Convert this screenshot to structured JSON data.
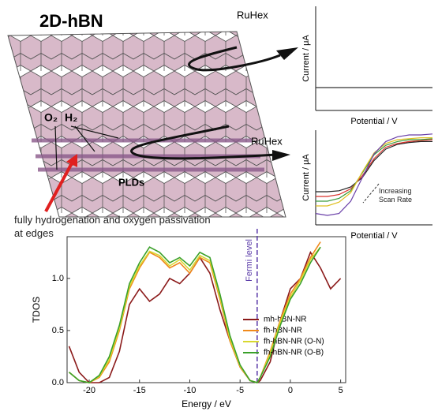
{
  "schematic": {
    "title": "2D-hBN",
    "label_top": "RuHex",
    "label_mid": "RuHex",
    "gas_o": "O₂",
    "gas_h": "H₂",
    "plds": "PLDs",
    "caption": "fully hydrogenation and oxygen passivation at edges"
  },
  "chart_data": [
    {
      "type": "line",
      "xlabel": "Potential / V",
      "ylabel": "Current / μA",
      "x": [
        0,
        10
      ],
      "xlim": [
        0,
        10
      ],
      "ylim": [
        0,
        1
      ],
      "series": [
        {
          "color": "#333333",
          "values": [
            0.22,
            0.22
          ]
        }
      ]
    },
    {
      "type": "line",
      "xlabel": "Potential / V",
      "ylabel": "Current / μA",
      "annotation": "Increasing Scan Rate",
      "x": [
        0,
        1,
        2,
        3,
        4,
        5,
        6,
        7,
        8,
        9,
        10
      ],
      "xlim": [
        0,
        10
      ],
      "ylim": [
        0,
        1
      ],
      "series": [
        {
          "color": "#222222",
          "values": [
            0.35,
            0.35,
            0.36,
            0.4,
            0.5,
            0.68,
            0.8,
            0.85,
            0.87,
            0.88,
            0.88
          ]
        },
        {
          "color": "#d9302a",
          "values": [
            0.3,
            0.3,
            0.32,
            0.38,
            0.52,
            0.7,
            0.82,
            0.86,
            0.88,
            0.89,
            0.9
          ]
        },
        {
          "color": "#3a9a3a",
          "values": [
            0.25,
            0.25,
            0.28,
            0.36,
            0.55,
            0.74,
            0.84,
            0.88,
            0.9,
            0.9,
            0.91
          ]
        },
        {
          "color": "#e0c020",
          "values": [
            0.2,
            0.2,
            0.24,
            0.34,
            0.56,
            0.76,
            0.86,
            0.9,
            0.91,
            0.92,
            0.92
          ]
        },
        {
          "color": "#6a3fa8",
          "values": [
            0.12,
            0.1,
            0.12,
            0.25,
            0.5,
            0.75,
            0.88,
            0.93,
            0.95,
            0.95,
            0.96
          ]
        }
      ]
    },
    {
      "type": "line",
      "xlabel": "Energy / eV",
      "ylabel": "TDOS",
      "fermi_level": -3.3,
      "fermi_label": "Fermi level",
      "x": [
        -22,
        -21,
        -20,
        -19,
        -18,
        -17,
        -16,
        -15,
        -14,
        -13,
        -12,
        -11,
        -10,
        -9,
        -8,
        -7,
        -6,
        -5,
        -4,
        -3.3,
        -3,
        -2,
        -1,
        0,
        1,
        2,
        3,
        4,
        5
      ],
      "xlim": [
        -22.2,
        5.5
      ],
      "ylim": [
        0,
        1.4
      ],
      "xticks": [
        -20,
        -15,
        -10,
        -5,
        0,
        5
      ],
      "yticks": [
        {
          "value": 0,
          "label": "0.0"
        },
        {
          "value": 0.5,
          "label": "0.5"
        },
        {
          "value": 1,
          "label": "1.0"
        }
      ],
      "legend": "lower right",
      "series": [
        {
          "name": "mh-hBN-NR",
          "color": "#8b1a1a",
          "values": [
            0.35,
            0.1,
            0,
            0,
            0.05,
            0.3,
            0.75,
            0.9,
            0.78,
            0.85,
            1.0,
            0.95,
            1.05,
            1.2,
            1.05,
            0.7,
            0.4,
            0.15,
            0.02,
            0,
            0.02,
            0.2,
            0.6,
            0.9,
            1.0,
            1.25,
            1.1,
            0.9,
            1.0
          ]
        },
        {
          "name": "fh-hBN-NR",
          "color": "#f08a1c",
          "values": [
            0.1,
            0.02,
            0,
            0.05,
            0.2,
            0.5,
            0.9,
            1.1,
            1.25,
            1.2,
            1.1,
            1.15,
            1.05,
            1.2,
            1.15,
            0.8,
            0.4,
            0.15,
            0.02,
            0,
            0.05,
            0.3,
            0.6,
            0.85,
            1.0,
            1.2,
            1.35,
            null,
            null
          ]
        },
        {
          "name": "fh-hBN-NR (O-N)",
          "color": "#d8d830",
          "values": [
            0.1,
            0.02,
            0,
            0.06,
            0.22,
            0.52,
            0.92,
            1.12,
            1.26,
            1.22,
            1.12,
            1.18,
            1.08,
            1.22,
            1.17,
            0.82,
            0.42,
            0.16,
            0.02,
            0,
            0.05,
            0.28,
            0.58,
            0.82,
            0.98,
            1.18,
            1.3,
            null,
            null
          ]
        },
        {
          "name": "fh-hBN-NR (O-B)",
          "color": "#3aa02a",
          "values": [
            0.1,
            0.02,
            0,
            0.07,
            0.25,
            0.55,
            0.95,
            1.15,
            1.3,
            1.25,
            1.15,
            1.2,
            1.12,
            1.25,
            1.2,
            0.85,
            0.45,
            0.17,
            0.02,
            0,
            0.05,
            0.25,
            0.55,
            0.8,
            0.95,
            1.15,
            1.3,
            null,
            null
          ]
        }
      ]
    }
  ]
}
